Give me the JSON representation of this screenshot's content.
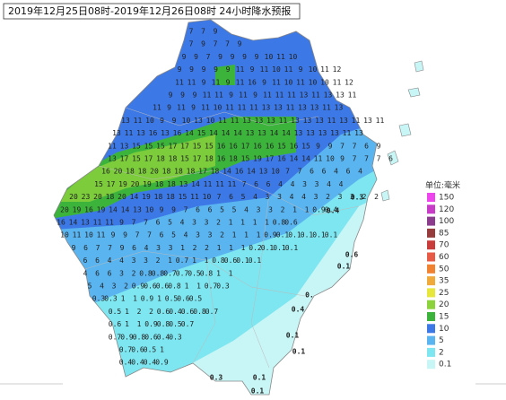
{
  "header": {
    "title": "2019年12月25日08时-2019年12月26日08时  24小时降水预报"
  },
  "legend": {
    "title": "单位:毫米",
    "items": [
      {
        "label": "150",
        "color": "#ee44ee"
      },
      {
        "label": "120",
        "color": "#c83cc8"
      },
      {
        "label": "100",
        "color": "#8c3c8c"
      },
      {
        "label": "85",
        "color": "#963c3c"
      },
      {
        "label": "70",
        "color": "#c83c3c"
      },
      {
        "label": "60",
        "color": "#e65a46"
      },
      {
        "label": "50",
        "color": "#f08232"
      },
      {
        "label": "35",
        "color": "#f0aa3c"
      },
      {
        "label": "25",
        "color": "#e6e63c"
      },
      {
        "label": "20",
        "color": "#8cd23c"
      },
      {
        "label": "15",
        "color": "#3cb43c"
      },
      {
        "label": "10",
        "color": "#3c78e6"
      },
      {
        "label": "5",
        "color": "#5ab4f0"
      },
      {
        "label": "2",
        "color": "#7ee6f0"
      },
      {
        "label": "0.1",
        "color": "#c8f5f5"
      }
    ]
  },
  "map": {
    "grid_rows": [
      [
        "7",
        "7",
        "9"
      ],
      [
        "7",
        "9",
        "7",
        "7",
        "9"
      ],
      [
        "9",
        "9",
        "7",
        "9",
        "9",
        "9",
        "9",
        "10",
        "11",
        "10"
      ],
      [
        "9",
        "9",
        "9",
        "9",
        "9",
        "11",
        "9",
        "11",
        "10",
        "11",
        "9",
        "10",
        "11",
        "12"
      ],
      [
        "11",
        "11",
        "9",
        "11",
        "9",
        "11",
        "16",
        "9",
        "11",
        "10",
        "11",
        "10",
        "10",
        "11",
        "12"
      ],
      [
        "9",
        "9",
        "9",
        "11",
        "11",
        "9",
        "11",
        "9",
        "11",
        "11",
        "11",
        "13",
        "11",
        "13",
        "13",
        "11"
      ],
      [
        "11",
        "9",
        "11",
        "9",
        "11",
        "10",
        "11",
        "11",
        "11",
        "13",
        "13",
        "11",
        "13",
        "13",
        "11",
        "13"
      ],
      [
        "13",
        "11",
        "10",
        "9",
        "9",
        "10",
        "13",
        "10",
        "11",
        "11",
        "13",
        "13",
        "13",
        "11",
        "13",
        "13",
        "13",
        "11",
        "13",
        "11",
        "13",
        "11"
      ],
      [
        "13",
        "11",
        "13",
        "16",
        "13",
        "16",
        "14",
        "15",
        "14",
        "14",
        "14",
        "13",
        "13",
        "14",
        "14",
        "13",
        "13",
        "13",
        "13",
        "11",
        "13"
      ],
      [
        "11",
        "13",
        "15",
        "15",
        "15",
        "17",
        "17",
        "15",
        "15",
        "16",
        "16",
        "17",
        "16",
        "16",
        "15",
        "16",
        "15",
        "9",
        "9",
        "7",
        "7",
        "6",
        "9"
      ],
      [
        "13",
        "17",
        "15",
        "17",
        "18",
        "18",
        "15",
        "17",
        "18",
        "16",
        "18",
        "15",
        "19",
        "17",
        "16",
        "14",
        "14",
        "11",
        "10",
        "9",
        "7",
        "7",
        "7",
        "6"
      ],
      [
        "16",
        "20",
        "18",
        "18",
        "20",
        "18",
        "18",
        "18",
        "17",
        "18",
        "14",
        "16",
        "14",
        "13",
        "10",
        "7",
        "7",
        "6",
        "6",
        "4",
        "6",
        "4"
      ],
      [
        "15",
        "17",
        "19",
        "20",
        "19",
        "18",
        "18",
        "13",
        "14",
        "11",
        "11",
        "11",
        "7",
        "6",
        "6",
        "4",
        "4",
        "3",
        "3",
        "4",
        "4"
      ],
      [
        "20",
        "23",
        "20",
        "18",
        "20",
        "14",
        "19",
        "18",
        "18",
        "15",
        "11",
        "10",
        "7",
        "6",
        "5",
        "4",
        "3",
        "3",
        "4",
        "4",
        "3",
        "2",
        "3",
        "3",
        "2",
        "2"
      ],
      [
        "20",
        "19",
        "16",
        "19",
        "14",
        "14",
        "13",
        "10",
        "9",
        "9",
        "7",
        "6",
        "6",
        "5",
        "5",
        "4",
        "3",
        "3",
        "2",
        "1",
        "1",
        "0.9",
        "0.4"
      ],
      [
        "16",
        "14",
        "13",
        "11",
        "11",
        "9",
        "7",
        "7",
        "6",
        "5",
        "4",
        "3",
        "3",
        "2",
        "1",
        "1",
        "1",
        "1",
        "0.8",
        "0.6"
      ],
      [
        "10",
        "11",
        "10",
        "11",
        "9",
        "9",
        "7",
        "7",
        "6",
        "5",
        "4",
        "3",
        "3",
        "2",
        "1",
        "1",
        "1",
        "0.9",
        "0.1",
        "0.1",
        "0.1",
        "0.1",
        "0.1"
      ],
      [
        "9",
        "6",
        "7",
        "7",
        "9",
        "6",
        "4",
        "3",
        "3",
        "1",
        "2",
        "2",
        "1",
        "1",
        "1",
        "0.2",
        "0.1",
        "0.1",
        "0.1"
      ],
      [
        "6",
        "6",
        "4",
        "4",
        "3",
        "3",
        "2",
        "1",
        "0.7",
        "1",
        "1",
        "0.8",
        "0.6",
        "0.1",
        "0.1"
      ],
      [
        "4",
        "6",
        "6",
        "3",
        "2",
        "0.8",
        "0.8",
        "0.7",
        "0.7",
        "0.5",
        "0.8",
        "1",
        "1"
      ],
      [
        "5",
        "4",
        "3",
        "2",
        "0.9",
        "0.6",
        "0.6",
        "0.8",
        "1",
        "1",
        "0.7",
        "0.3"
      ],
      [
        "0.3",
        "0.3",
        "1",
        "1",
        "0.9",
        "1",
        "0.5",
        "0.6",
        "0.5"
      ],
      [
        "0.5",
        "1",
        "2",
        "2",
        "0.6",
        "0.4",
        "0.6",
        "0.8",
        "0.7"
      ],
      [
        "0.6",
        "1",
        "1",
        "0.9",
        "0.8",
        "0.5",
        "0.7"
      ],
      [
        "0.7",
        "0.9",
        "0.8",
        "0.6",
        "0.4",
        "0.3"
      ],
      [
        "0.7",
        "0.6",
        "0.5",
        "1"
      ],
      [
        "0.4",
        "0.4",
        "0.4",
        "0.9"
      ]
    ],
    "extra_labels": [
      "0.3",
      "0.4",
      "0.6",
      "0.1",
      "0.",
      "0.4",
      "0.1",
      "0.1",
      "0.3",
      "0.1",
      "0.1"
    ]
  }
}
